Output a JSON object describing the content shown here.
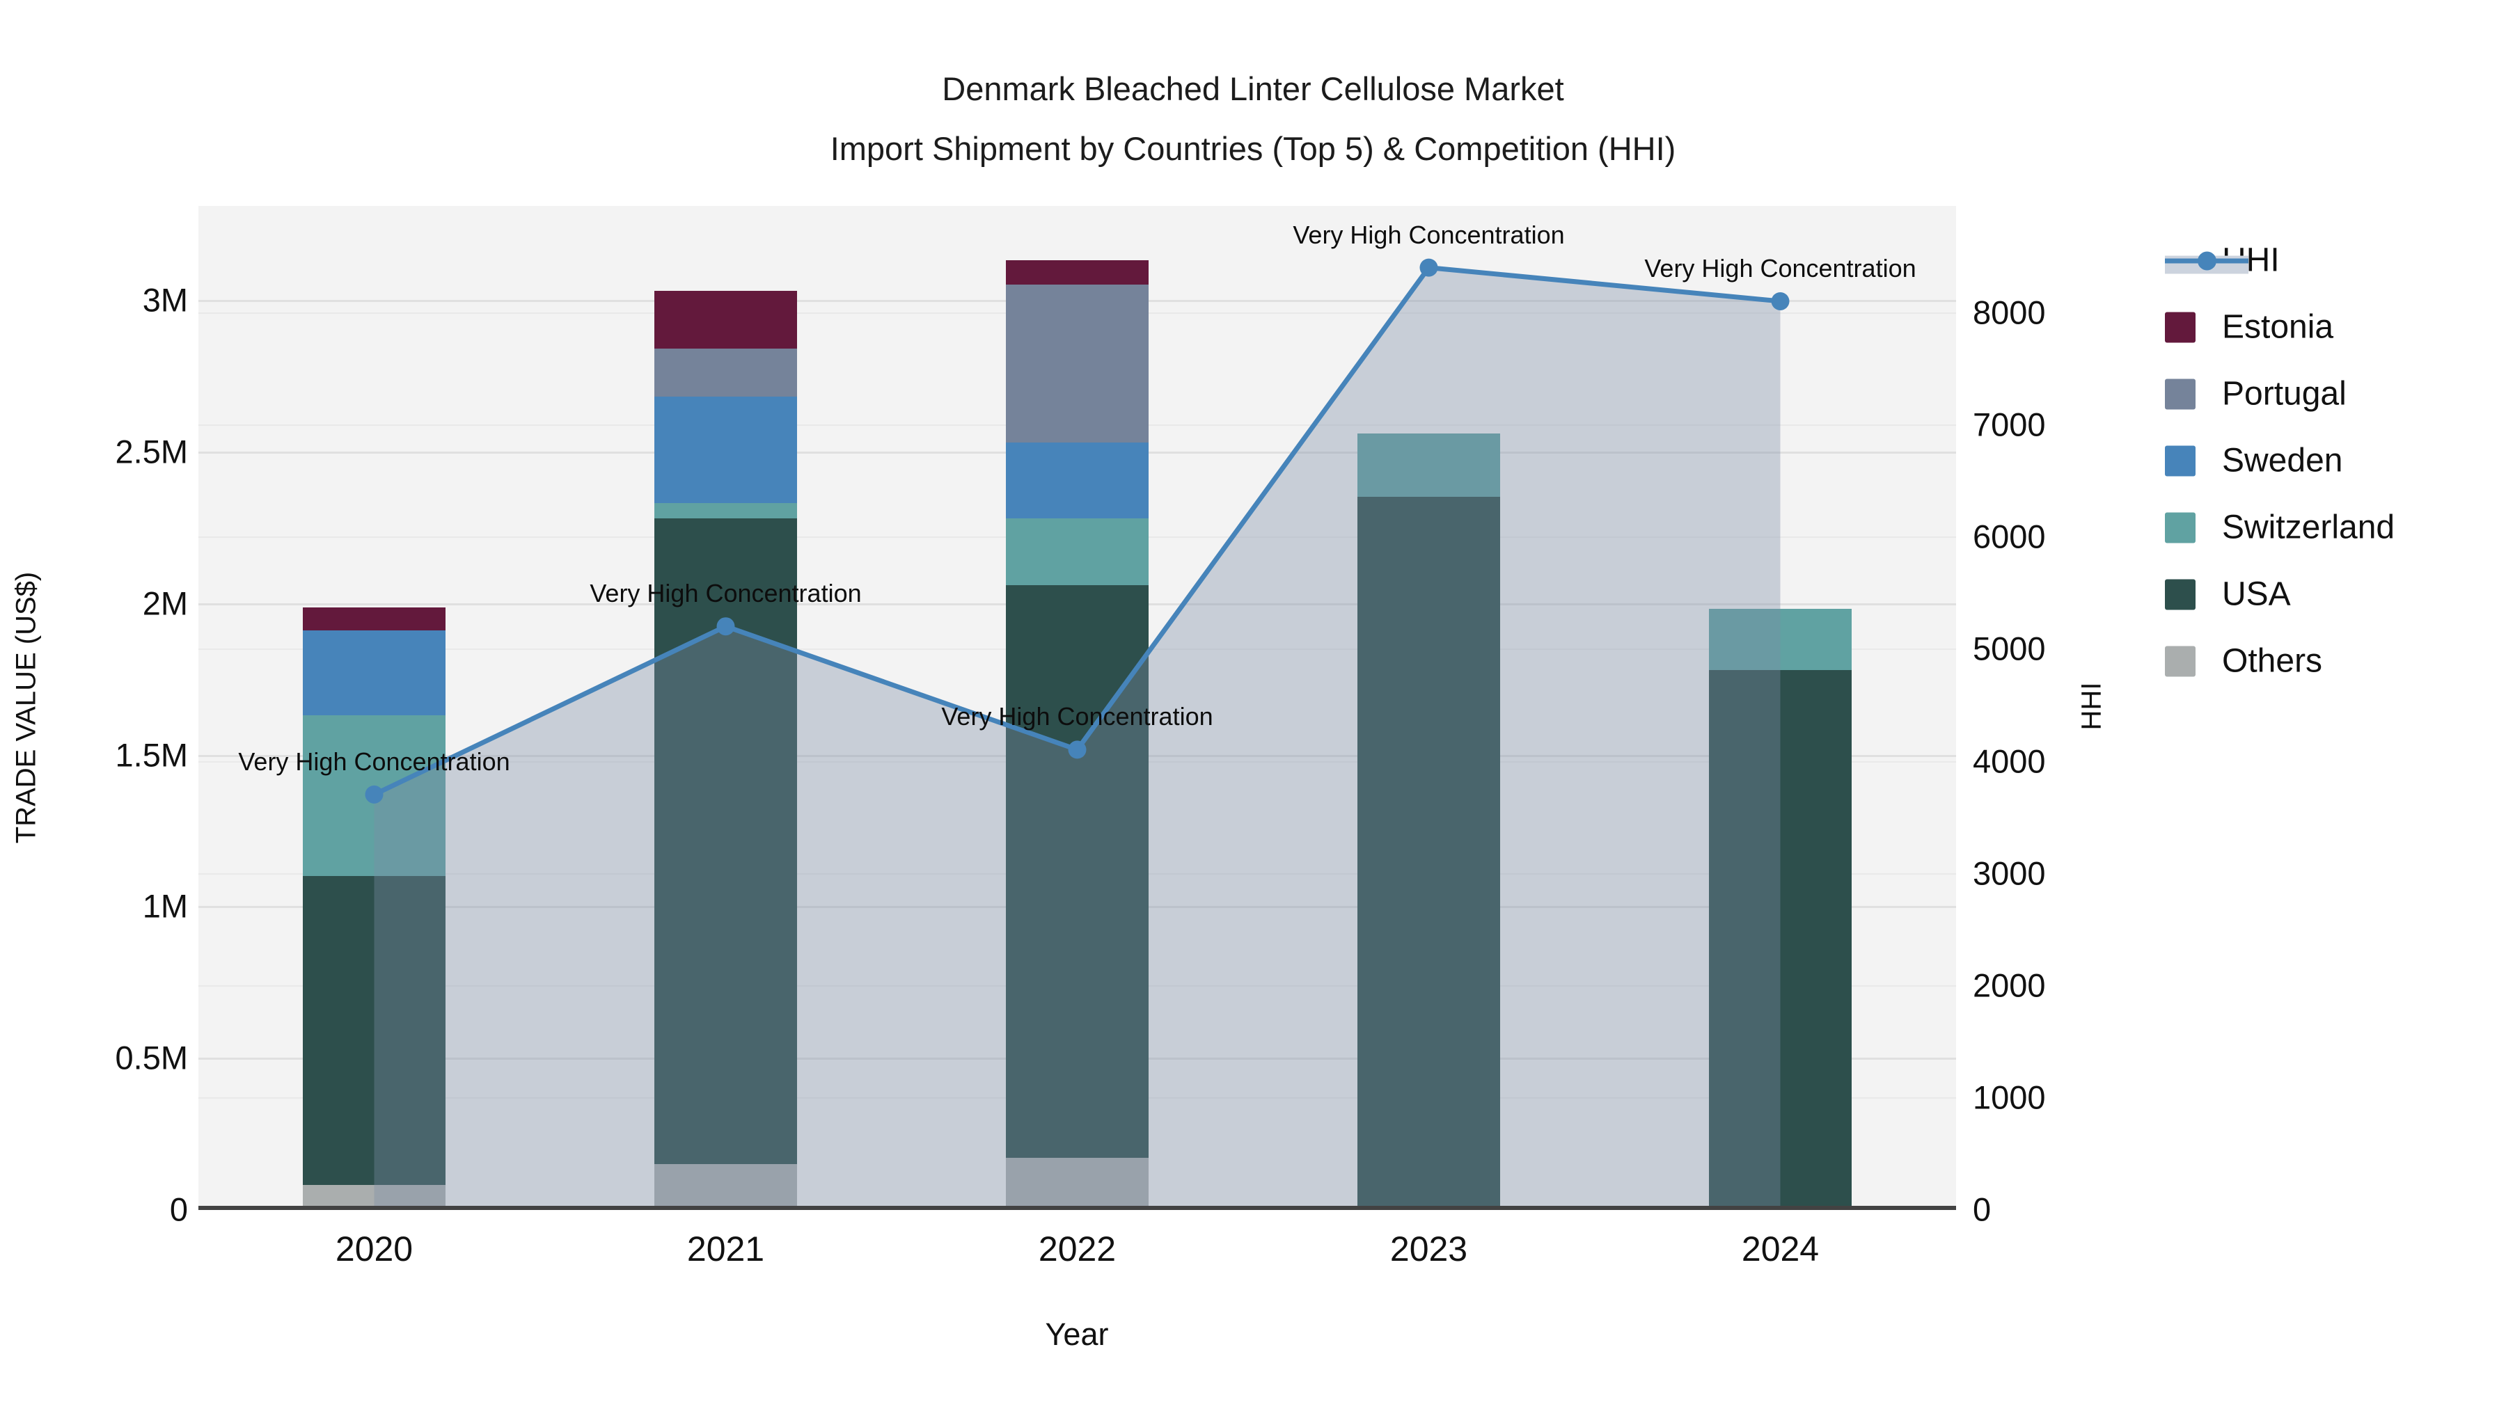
{
  "title": {
    "line1": "Denmark Bleached Linter Cellulose Market",
    "line2": "Import Shipment by Countries (Top 5) & Competition (HHI)"
  },
  "chart_data": {
    "type": "stacked-bar+line-dual-axis",
    "categories": [
      "2020",
      "2021",
      "2022",
      "2023",
      "2024"
    ],
    "xlabel": "Year",
    "y_left": {
      "title": "TRADE VALUE (US$)",
      "tick_labels": [
        "0",
        "0.5M",
        "1M",
        "1.5M",
        "2M",
        "2.5M",
        "3M"
      ],
      "tick_values": [
        0,
        500000,
        1000000,
        1500000,
        2000000,
        2500000,
        3000000
      ],
      "range": [
        0,
        3310000
      ],
      "grid": true
    },
    "y_right": {
      "title": "HHI",
      "tick_labels": [
        "0",
        "1000",
        "2000",
        "3000",
        "4000",
        "5000",
        "6000",
        "7000",
        "8000"
      ],
      "tick_values": [
        0,
        1000,
        2000,
        3000,
        4000,
        5000,
        6000,
        7000,
        8000
      ],
      "range": [
        0,
        8950
      ],
      "grid": true
    },
    "bar_series": [
      {
        "name": "Others",
        "color": "#aaaeae",
        "values": [
          80000,
          150000,
          170000,
          0,
          0
        ]
      },
      {
        "name": "USA",
        "color": "#2d4f4c",
        "values": [
          1020000,
          2130000,
          1890000,
          2350000,
          1780000
        ]
      },
      {
        "name": "Switzerland",
        "color": "#60a2a2",
        "values": [
          530000,
          50000,
          220000,
          210000,
          200000
        ]
      },
      {
        "name": "Sweden",
        "color": "#4784ba",
        "values": [
          280000,
          350000,
          250000,
          0,
          0
        ]
      },
      {
        "name": "Portugal",
        "color": "#75839a",
        "values": [
          0,
          160000,
          520000,
          0,
          0
        ]
      },
      {
        "name": "Estonia",
        "color": "#63193c",
        "values": [
          75000,
          190000,
          80000,
          0,
          0
        ]
      }
    ],
    "line_series": {
      "name": "HHI",
      "line_color": "#4684ba",
      "area_color": "rgba(125,140,165,0.36)",
      "values": [
        3700,
        5200,
        4100,
        8400,
        8100
      ],
      "point_annotations": [
        "Very High Concentration",
        "Very High Concentration",
        "Very High Concentration",
        "Very High Concentration",
        "Very High Concentration"
      ]
    },
    "legend": [
      "HHI",
      "Estonia",
      "Portugal",
      "Sweden",
      "Switzerland",
      "USA",
      "Others"
    ],
    "legend_position": "right"
  }
}
